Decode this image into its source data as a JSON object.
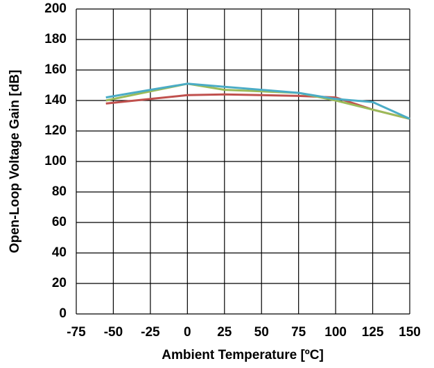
{
  "chart_data": {
    "type": "line",
    "x_label": "Ambient Temperature  [ºC]",
    "y_label": "Open-Loop Voltage Gain  [dB]",
    "x": [
      -55,
      -25,
      0,
      25,
      50,
      75,
      100,
      125,
      150
    ],
    "series": [
      {
        "color": "#c0504d",
        "values": [
          138,
          141,
          143.5,
          144,
          143.5,
          143,
          142,
          134,
          128
        ]
      },
      {
        "color": "#9bbb59",
        "values": [
          140,
          146,
          151,
          147,
          146,
          145,
          140,
          134,
          128
        ]
      },
      {
        "color": "#4bacc6",
        "values": [
          142,
          147,
          151,
          149,
          147,
          145,
          141,
          139,
          128
        ]
      }
    ],
    "xlim": [
      -75,
      150
    ],
    "xticks": [
      -75,
      -50,
      -25,
      0,
      25,
      50,
      75,
      100,
      125,
      150
    ],
    "ylim": [
      0,
      200
    ],
    "yticks": [
      0,
      20,
      40,
      60,
      80,
      100,
      120,
      140,
      160,
      180,
      200
    ],
    "grid": true
  }
}
